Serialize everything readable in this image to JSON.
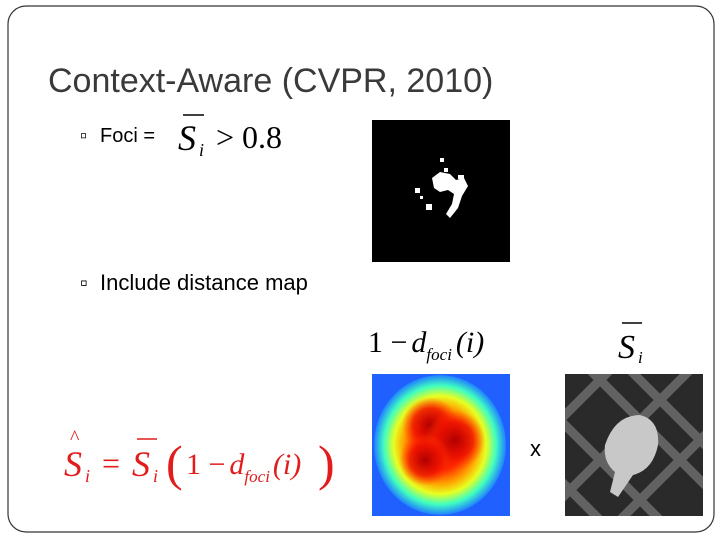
{
  "title": "Context-Aware (CVPR, 2010)",
  "bullets": [
    {
      "text": "Foci ="
    },
    {
      "text": "Include distance map"
    }
  ],
  "foci_condition": {
    "symbol": "S",
    "subscript": "i",
    "relation": "> 0.8"
  },
  "distance_label": {
    "prefix": "1 −",
    "symbol": "d",
    "subscript": "foci",
    "argument": "(i)"
  },
  "saliency_label": {
    "symbol": "S",
    "subscript": "i"
  },
  "equation": {
    "lhs": "S",
    "lhs_sub": "i",
    "eq": "=",
    "factor": "S",
    "factor_sub": "i",
    "open": "(",
    "prefix": "1 −",
    "symbol": "d",
    "subscript": "foci",
    "argument": "(i)",
    "close": ")"
  },
  "operator": "x"
}
